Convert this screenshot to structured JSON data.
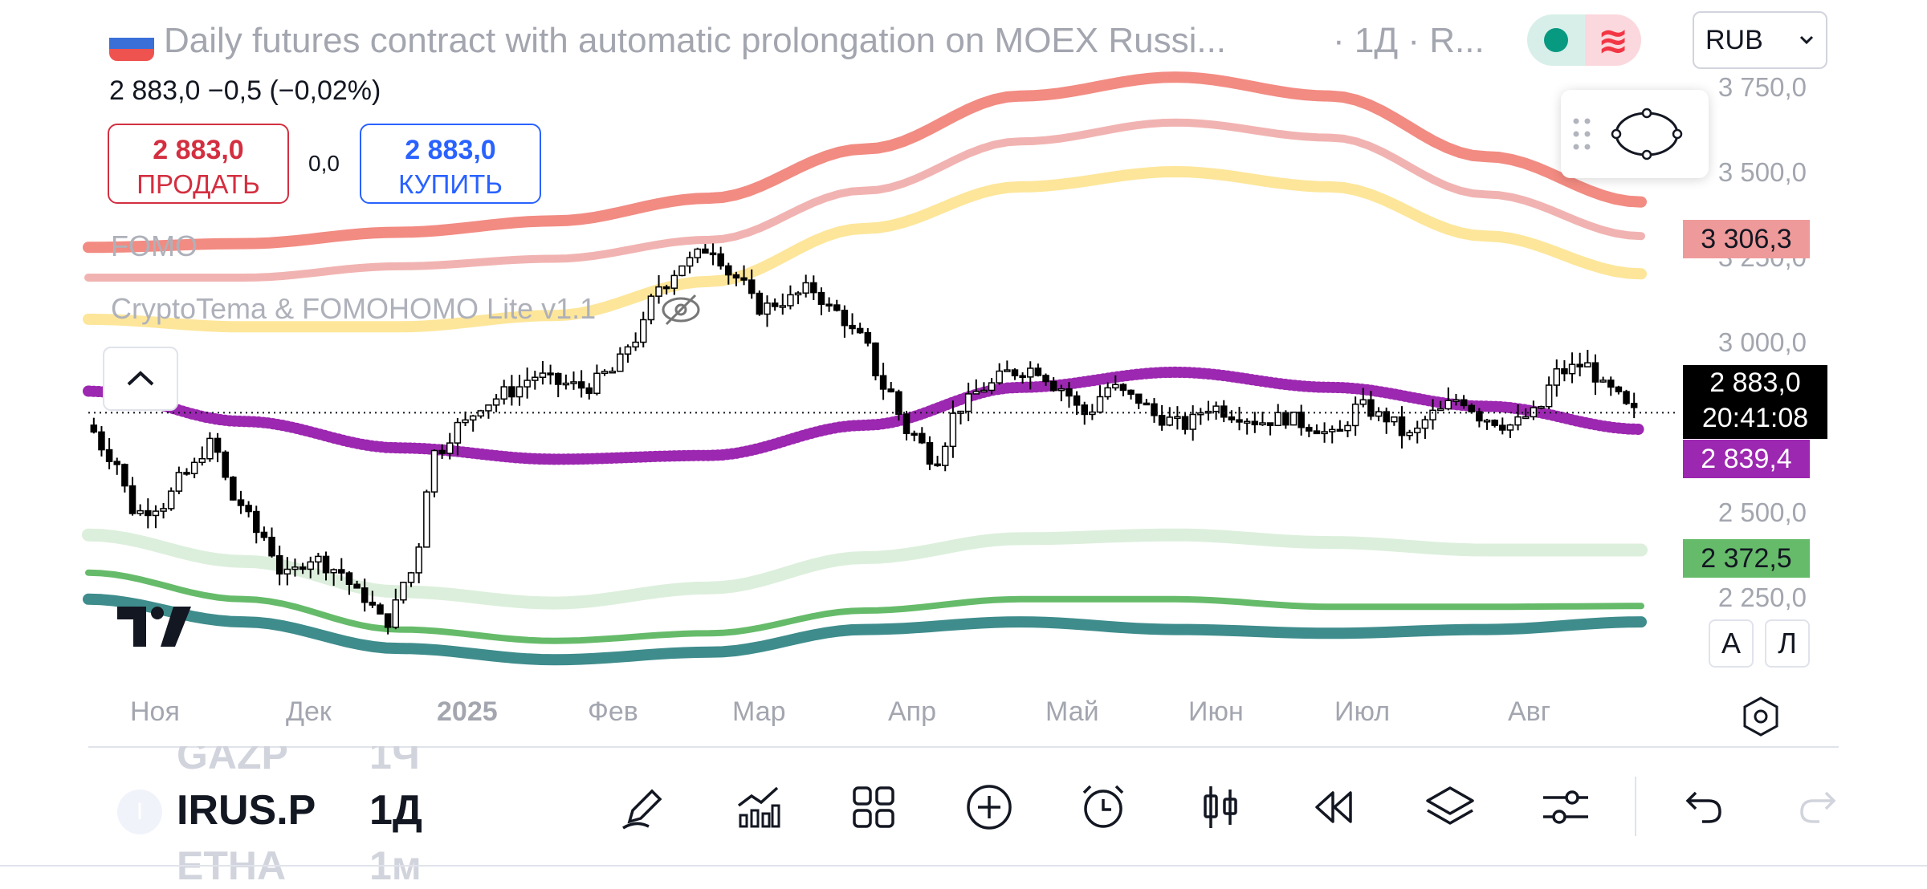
{
  "header": {
    "title": "Daily futures contract with automatic prolongation on MOEX Russi...",
    "meta": "· 1Д · R...",
    "market_status": "open",
    "currency": "RUB"
  },
  "quote": {
    "price_line": "2 883,0  −0,5 (−0,02%)",
    "sell_price": "2 883,0",
    "sell_label": "ПРОДАТЬ",
    "spread": "0,0",
    "buy_price": "2 883,0",
    "buy_label": "КУПИТЬ"
  },
  "indicators": {
    "first": "FOMO",
    "second": "CryptoTema & FOMOHOMO Lite v1.1"
  },
  "price_scale": {
    "labels": [
      "3 750,0",
      "3 500,0",
      "3 250,0",
      "3 000,0",
      "2 500,0",
      "2 250,0"
    ],
    "badges": [
      {
        "value": "3 306,3",
        "color": "#ef9a9a"
      },
      {
        "value": "2 839,4",
        "color": "#9c27b0"
      },
      {
        "value": "2 372,5",
        "color": "#66bb6a"
      }
    ],
    "current_price": "2 883,0",
    "countdown": "20:41:08",
    "auto_label": "А",
    "log_label": "Л"
  },
  "time_axis": [
    "Ноя",
    "Дек",
    "2025",
    "Фев",
    "Мар",
    "Апр",
    "Май",
    "Июн",
    "Июл",
    "Авг"
  ],
  "watchlist": {
    "previous": {
      "symbol": "GAZP",
      "tf": "1Ч"
    },
    "current": {
      "symbol": "IRUS.P",
      "tf": "1Д"
    },
    "next": {
      "symbol": "ETHA",
      "tf": "1м"
    }
  },
  "toolbar_icons": [
    "pencil-icon",
    "indicators-icon",
    "layouts-icon",
    "add-icon",
    "alarm-icon",
    "candles-icon",
    "replay-icon",
    "layers-icon",
    "settings-sliders-icon",
    "undo-icon",
    "redo-icon"
  ],
  "chart_data": {
    "type": "candlestick",
    "symbol": "IRUS.P",
    "interval": "1Д",
    "y_range": [
      2150,
      3800
    ],
    "x_months": [
      "Ноя",
      "Дек",
      "2025",
      "Фев",
      "Мар",
      "Апр",
      "Май",
      "Июн",
      "Июл",
      "Авг"
    ],
    "close_path": [
      2850,
      2770,
      2620,
      2640,
      2720,
      2800,
      2650,
      2560,
      2450,
      2500,
      2470,
      2400,
      2330,
      2460,
      2780,
      2850,
      2910,
      2940,
      2980,
      2960,
      2950,
      2990,
      3080,
      3220,
      3280,
      3320,
      3240,
      3160,
      3180,
      3210,
      3150,
      3080,
      2950,
      2830,
      2760,
      2900,
      2950,
      2990,
      3000,
      2950,
      2880,
      2950,
      2920,
      2870,
      2850,
      2900,
      2880,
      2860,
      2870,
      2850,
      2820,
      2900,
      2870,
      2820,
      2880,
      2920,
      2870,
      2850,
      2880,
      2990,
      3010,
      2940,
      2883
    ],
    "bands": {
      "outer_red": {
        "color": "#f28b82",
        "path": [
          3320,
          3330,
          3360,
          3390,
          3450,
          3580,
          3720,
          3770,
          3720,
          3560,
          3440
        ]
      },
      "mid_red": {
        "color": "#f1b3b1",
        "path": [
          3240,
          3240,
          3270,
          3290,
          3340,
          3470,
          3600,
          3650,
          3610,
          3460,
          3350
        ]
      },
      "yellow": {
        "color": "#fde69a",
        "path": [
          3130,
          3110,
          3110,
          3140,
          3230,
          3370,
          3480,
          3520,
          3480,
          3350,
          3250
        ]
      },
      "purple_mid": {
        "color": "#9c27b0",
        "path": [
          2940,
          2860,
          2790,
          2760,
          2770,
          2850,
          2950,
          2990,
          2950,
          2900,
          2839
        ]
      },
      "light_green": {
        "color": "#dcefdc",
        "path": [
          2560,
          2490,
          2410,
          2380,
          2420,
          2500,
          2550,
          2560,
          2540,
          2520,
          2520
        ]
      },
      "green": {
        "color": "#66bb6a",
        "path": [
          2460,
          2390,
          2310,
          2280,
          2300,
          2360,
          2390,
          2390,
          2370,
          2370,
          2372
        ]
      },
      "teal": {
        "color": "#3f8c8c",
        "path": [
          2390,
          2330,
          2260,
          2230,
          2250,
          2310,
          2330,
          2310,
          2300,
          2310,
          2330
        ]
      }
    }
  }
}
